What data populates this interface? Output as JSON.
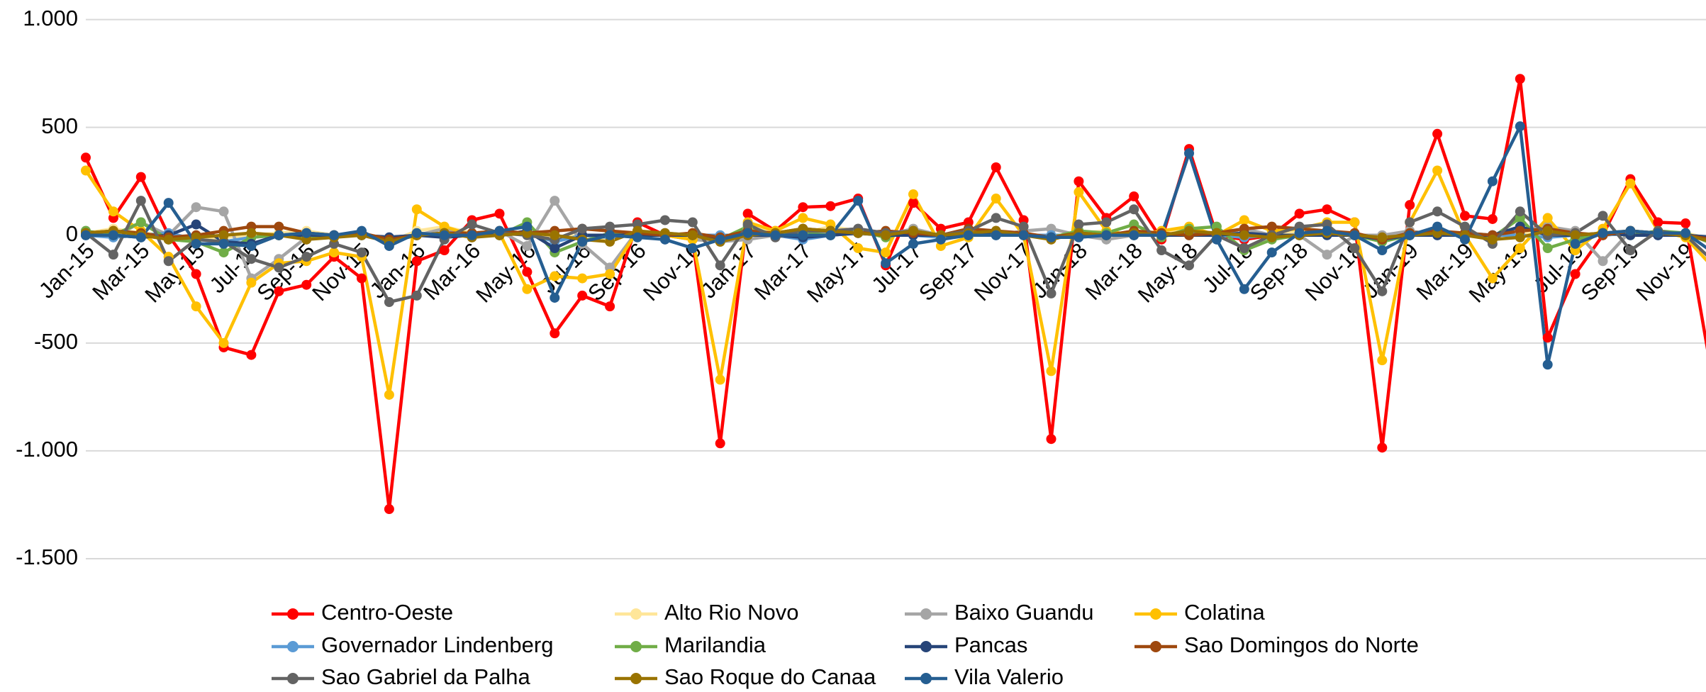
{
  "chart_data": {
    "type": "line",
    "categories": [
      "Jan-15",
      null,
      "Mar-15",
      null,
      "May-15",
      null,
      "Jul-15",
      null,
      "Sep-15",
      null,
      "Nov-15",
      null,
      "Jan-16",
      null,
      "Mar-16",
      null,
      "May-16",
      null,
      "Jul-16",
      null,
      "Sep-16",
      null,
      "Nov-16",
      null,
      "Jan-17",
      null,
      "Mar-17",
      null,
      "May-17",
      null,
      "Jul-17",
      null,
      "Sep-17",
      null,
      "Nov-17",
      null,
      "Jan-18",
      null,
      "Mar-18",
      null,
      "May-18",
      null,
      "Jul-18",
      null,
      "Sep-18",
      null,
      "Nov-18",
      null,
      "Jan-19",
      null,
      "Mar-19",
      null,
      "May-19",
      null,
      "Jul-19",
      null,
      "Sep-19",
      null,
      "Nov-19",
      null
    ],
    "ylim": [
      -1500,
      1000
    ],
    "yticks": [
      {
        "value": 1000,
        "label": "1.000"
      },
      500,
      0,
      -500,
      {
        "value": -1000,
        "label": "-1.000"
      },
      {
        "value": -1500,
        "label": "-1.500"
      }
    ],
    "grid": true,
    "legend": "bottom",
    "series": [
      {
        "name": "Centro-Oeste",
        "color": "#ff0000",
        "values": [
          360,
          80,
          270,
          0,
          -180,
          -520,
          -555,
          -260,
          -230,
          -100,
          -200,
          -1270,
          -120,
          -70,
          70,
          100,
          -170,
          -455,
          -280,
          -330,
          60,
          0,
          -20,
          -965,
          100,
          20,
          130,
          135,
          170,
          -140,
          150,
          30,
          60,
          315,
          70,
          -945,
          250,
          80,
          180,
          -20,
          400,
          0,
          -20,
          0,
          100,
          120,
          60,
          -985,
          140,
          470,
          90,
          75,
          725,
          -475,
          -180,
          0,
          260,
          60,
          55,
          -680
        ]
      },
      {
        "name": "Alto Rio Novo",
        "color": "#ffe699",
        "values": [
          10,
          30,
          10,
          0,
          -20,
          -10,
          0,
          10,
          20,
          0,
          10,
          -30,
          20,
          40,
          10,
          0,
          20,
          -10,
          0,
          -20,
          10,
          0,
          10,
          -20,
          30,
          20,
          10,
          40,
          20,
          0,
          10,
          0,
          20,
          10,
          0,
          -20,
          10,
          20,
          0,
          10,
          30,
          0,
          10,
          0,
          20,
          10,
          0,
          -10,
          20,
          0,
          10,
          0,
          10,
          20,
          0,
          10,
          20,
          0,
          10,
          -20
        ]
      },
      {
        "name": "Baixo Guandu",
        "color": "#a5a5a5",
        "values": [
          20,
          -10,
          60,
          0,
          130,
          110,
          -200,
          -110,
          -10,
          0,
          0,
          -20,
          0,
          30,
          -10,
          20,
          -50,
          160,
          -40,
          -150,
          20,
          0,
          -20,
          -30,
          -20,
          0,
          0,
          20,
          30,
          0,
          30,
          0,
          0,
          0,
          20,
          30,
          0,
          -20,
          0,
          0,
          20,
          0,
          30,
          0,
          0,
          -90,
          0,
          0,
          20,
          0,
          0,
          -10,
          20,
          40,
          20,
          -120,
          20,
          0,
          0,
          -20
        ]
      },
      {
        "name": "Colatina",
        "color": "#ffc000",
        "values": [
          300,
          110,
          20,
          -100,
          -330,
          -500,
          -220,
          -130,
          -120,
          -80,
          -100,
          -740,
          120,
          40,
          0,
          10,
          -250,
          -190,
          -200,
          -180,
          20,
          0,
          -20,
          -670,
          60,
          20,
          80,
          50,
          -60,
          -80,
          190,
          -50,
          -10,
          170,
          0,
          -630,
          200,
          20,
          0,
          20,
          40,
          0,
          70,
          20,
          30,
          60,
          60,
          -580,
          60,
          300,
          0,
          -200,
          -60,
          80,
          -70,
          30,
          240,
          20,
          -10,
          -150
        ]
      },
      {
        "name": "Governador Lindenberg",
        "color": "#5b9bd5",
        "values": [
          0,
          -10,
          0,
          10,
          -20,
          -30,
          -10,
          0,
          10,
          0,
          0,
          -10,
          0,
          10,
          0,
          0,
          10,
          -30,
          0,
          -10,
          0,
          10,
          0,
          0,
          0,
          0,
          -20,
          0,
          10,
          0,
          0,
          -10,
          0,
          0,
          0,
          0,
          0,
          0,
          0,
          0,
          10,
          0,
          -10,
          0,
          0,
          10,
          0,
          -20,
          0,
          0,
          10,
          0,
          0,
          -10,
          0,
          0,
          10,
          0,
          0,
          -10
        ]
      },
      {
        "name": "Marilandia",
        "color": "#70ad47",
        "values": [
          20,
          0,
          60,
          -20,
          -30,
          -80,
          -10,
          0,
          -10,
          0,
          10,
          -30,
          0,
          10,
          0,
          0,
          60,
          -80,
          -30,
          10,
          10,
          0,
          0,
          -20,
          40,
          0,
          10,
          0,
          20,
          -10,
          20,
          0,
          0,
          10,
          0,
          -10,
          20,
          10,
          50,
          -10,
          30,
          40,
          -70,
          -20,
          0,
          10,
          0,
          -30,
          0,
          20,
          0,
          -10,
          80,
          -60,
          -20,
          10,
          0,
          20,
          10,
          -40
        ]
      },
      {
        "name": "Pancas",
        "color": "#264478",
        "values": [
          0,
          0,
          -10,
          0,
          50,
          -30,
          -40,
          0,
          0,
          0,
          0,
          -10,
          0,
          -10,
          0,
          0,
          20,
          -60,
          0,
          0,
          0,
          0,
          0,
          -20,
          0,
          0,
          -10,
          0,
          10,
          0,
          0,
          0,
          0,
          10,
          0,
          -10,
          0,
          0,
          0,
          0,
          0,
          0,
          10,
          0,
          0,
          0,
          0,
          -20,
          0,
          0,
          0,
          0,
          40,
          0,
          0,
          10,
          0,
          0,
          0,
          -10
        ]
      },
      {
        "name": "Sao Domingos do Norte",
        "color": "#9e480e",
        "values": [
          10,
          20,
          10,
          -10,
          0,
          20,
          40,
          40,
          10,
          0,
          10,
          -20,
          0,
          10,
          10,
          20,
          10,
          20,
          30,
          20,
          10,
          0,
          10,
          -10,
          20,
          10,
          30,
          20,
          10,
          20,
          10,
          0,
          30,
          20,
          10,
          -10,
          10,
          0,
          20,
          10,
          0,
          10,
          30,
          40,
          30,
          20,
          10,
          -20,
          10,
          20,
          10,
          0,
          20,
          30,
          10,
          0,
          20,
          10,
          0,
          -20
        ]
      },
      {
        "name": "Sao Gabriel da Palha",
        "color": "#636363",
        "values": [
          10,
          -90,
          160,
          -120,
          -20,
          -30,
          -110,
          -150,
          -100,
          -40,
          -80,
          -310,
          -280,
          -20,
          50,
          10,
          0,
          -20,
          30,
          40,
          50,
          70,
          60,
          -140,
          50,
          -10,
          20,
          20,
          30,
          10,
          20,
          0,
          20,
          80,
          40,
          -270,
          50,
          60,
          120,
          -70,
          -140,
          0,
          -60,
          0,
          40,
          50,
          -60,
          -260,
          60,
          110,
          40,
          -40,
          110,
          0,
          10,
          90,
          -70,
          20,
          0,
          -120
        ]
      },
      {
        "name": "Sao Roque do Canaa",
        "color": "#997300",
        "values": [
          10,
          20,
          0,
          -20,
          -10,
          0,
          10,
          0,
          -20,
          -10,
          0,
          -30,
          0,
          10,
          -10,
          0,
          10,
          0,
          -20,
          -30,
          20,
          10,
          0,
          -30,
          0,
          10,
          30,
          20,
          10,
          0,
          20,
          0,
          10,
          20,
          0,
          -20,
          10,
          0,
          10,
          0,
          20,
          10,
          0,
          -10,
          0,
          10,
          0,
          -10,
          0,
          10,
          0,
          -20,
          -10,
          20,
          0,
          10,
          20,
          10,
          0,
          -30
        ]
      },
      {
        "name": "Vila Valerio",
        "color": "#255e91",
        "values": [
          0,
          0,
          -10,
          150,
          -40,
          -40,
          -50,
          0,
          10,
          0,
          20,
          -50,
          10,
          0,
          0,
          20,
          40,
          -290,
          -30,
          0,
          -10,
          -20,
          -60,
          -20,
          10,
          0,
          0,
          0,
          160,
          -130,
          -40,
          -20,
          0,
          0,
          0,
          -10,
          -10,
          0,
          0,
          0,
          380,
          -20,
          -250,
          -80,
          10,
          20,
          0,
          -70,
          0,
          40,
          -20,
          250,
          505,
          -600,
          -40,
          10,
          20,
          10,
          10,
          -80
        ]
      }
    ]
  }
}
